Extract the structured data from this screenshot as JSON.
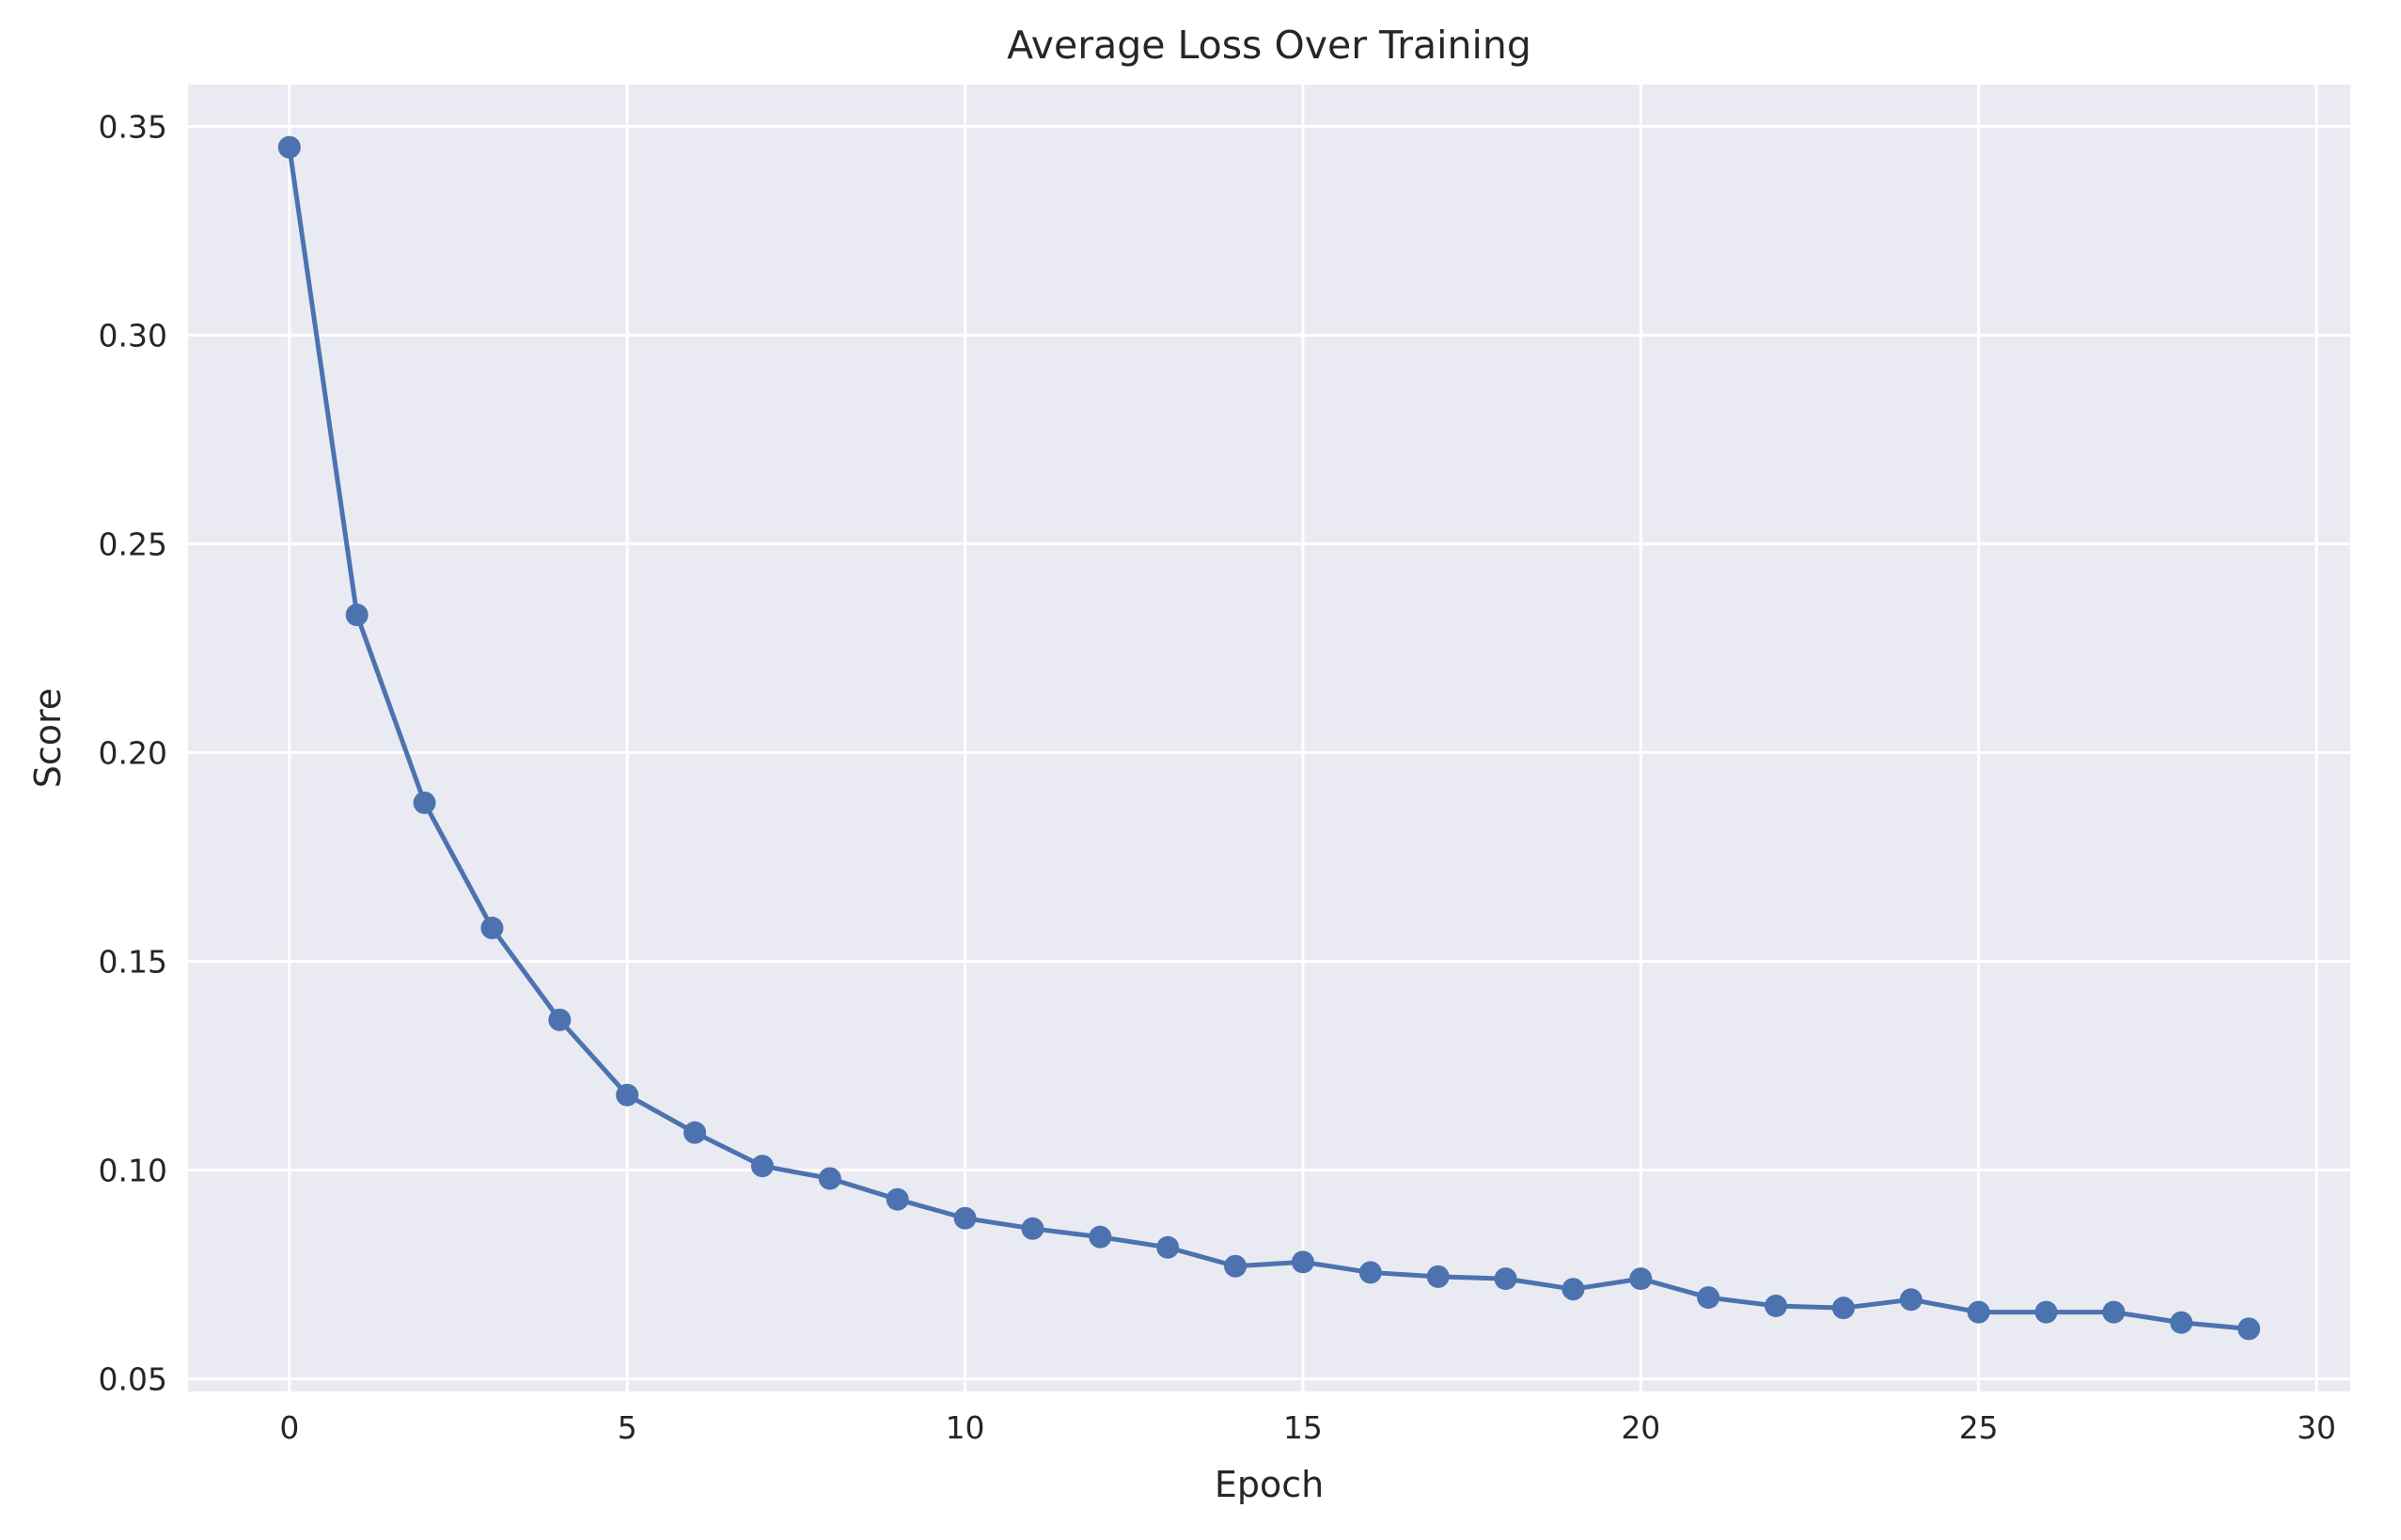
{
  "chart_data": {
    "type": "line",
    "title": "Average Loss Over Training",
    "xlabel": "Epoch",
    "ylabel": "Score",
    "xlim": [
      -1.5,
      30.5
    ],
    "ylim": [
      0.047,
      0.36
    ],
    "xticks": [
      0,
      5,
      10,
      15,
      20,
      25,
      30
    ],
    "xtick_labels": [
      "0",
      "5",
      "10",
      "15",
      "20",
      "25",
      "30"
    ],
    "yticks": [
      0.05,
      0.1,
      0.15,
      0.2,
      0.25,
      0.3,
      0.35
    ],
    "ytick_labels": [
      "0.05",
      "0.10",
      "0.15",
      "0.20",
      "0.25",
      "0.30",
      "0.35"
    ],
    "grid": true,
    "legend": false,
    "colors": {
      "background": "#eaeaf2",
      "grid": "#ffffff",
      "series": "#4c72b0"
    },
    "x": [
      0,
      1,
      2,
      3,
      4,
      5,
      6,
      7,
      8,
      9,
      10,
      11,
      12,
      13,
      14,
      15,
      16,
      17,
      18,
      19,
      20,
      21,
      22,
      23,
      24,
      25,
      26,
      27,
      28,
      29
    ],
    "series": [
      {
        "values": [
          0.345,
          0.233,
          0.188,
          0.158,
          0.136,
          0.118,
          0.109,
          0.101,
          0.098,
          0.093,
          0.0885,
          0.086,
          0.084,
          0.0815,
          0.077,
          0.078,
          0.0755,
          0.0745,
          0.074,
          0.0715,
          0.074,
          0.0695,
          0.0675,
          0.067,
          0.069,
          0.066,
          0.066,
          0.066,
          0.0635,
          0.062
        ]
      }
    ]
  }
}
